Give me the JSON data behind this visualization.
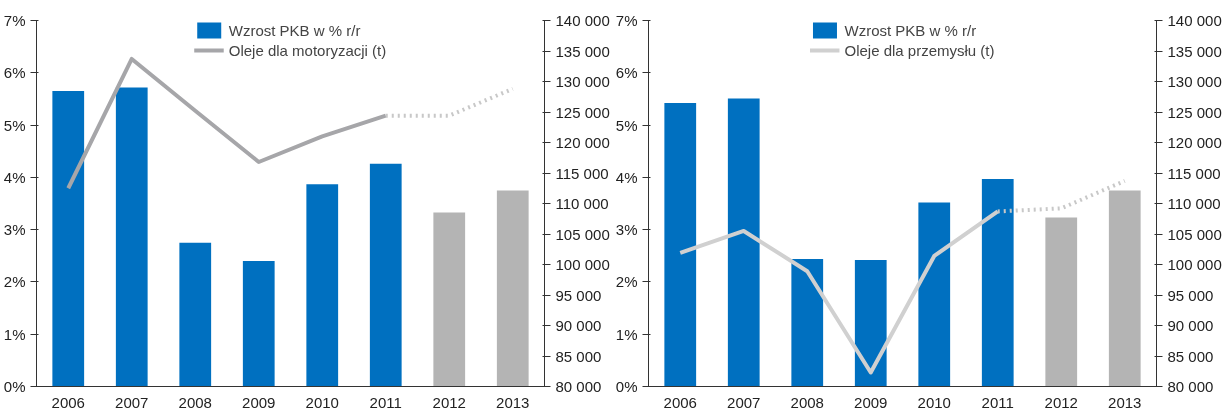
{
  "chart_data": [
    {
      "type": "bar",
      "categories": [
        "2006",
        "2007",
        "2008",
        "2009",
        "2010",
        "2011",
        "2012",
        "2013"
      ],
      "series": [
        {
          "name": "Wzrost PKB w % r/r",
          "color": "#0070c0",
          "colors": [
            "#0070c0",
            "#0070c0",
            "#0070c0",
            "#0070c0",
            "#0070c0",
            "#0070c0",
            "#b4b4b4",
            "#b4b4b4"
          ],
          "values": [
            5.65,
            5.72,
            2.75,
            2.4,
            3.87,
            4.26,
            3.33,
            3.75
          ]
        },
        {
          "name": "Oleje dla motoryzacji (t)",
          "type": "line",
          "axis": "y2",
          "color": "#a6a6a9",
          "line_style": "solid",
          "values": [
            112500,
            133700,
            125200,
            116800,
            121000,
            124400,
            null,
            null
          ]
        },
        {
          "type": "line",
          "axis": "y2",
          "color": "#c8c8c8",
          "line_style": "dotted",
          "values": [
            null,
            null,
            null,
            null,
            null,
            124400,
            124400,
            128800
          ]
        }
      ],
      "ylim": [
        0,
        7
      ],
      "yticks": [
        {
          "value": 0,
          "label": "0%"
        },
        {
          "value": 1,
          "label": "1%"
        },
        {
          "value": 2,
          "label": "2%"
        },
        {
          "value": 3,
          "label": "3%"
        },
        {
          "value": 4,
          "label": "4%"
        },
        {
          "value": 5,
          "label": "5%"
        },
        {
          "value": 6,
          "label": "6%"
        },
        {
          "value": 7,
          "label": "7%"
        }
      ],
      "y2lim": [
        80000,
        140000
      ],
      "y2ticks": [
        {
          "value": 80000,
          "label": "80 000"
        },
        {
          "value": 85000,
          "label": "85 000"
        },
        {
          "value": 90000,
          "label": "90 000"
        },
        {
          "value": 95000,
          "label": "95 000"
        },
        {
          "value": 100000,
          "label": "100 000"
        },
        {
          "value": 105000,
          "label": "105 000"
        },
        {
          "value": 110000,
          "label": "110 000"
        },
        {
          "value": 115000,
          "label": "115 000"
        },
        {
          "value": 120000,
          "label": "120 000"
        },
        {
          "value": 125000,
          "label": "125 000"
        },
        {
          "value": 130000,
          "label": "130 000"
        },
        {
          "value": 135000,
          "label": "135 000"
        },
        {
          "value": 140000,
          "label": "140 000"
        }
      ],
      "grid": false,
      "legend": "top"
    },
    {
      "type": "bar",
      "categories": [
        "2006",
        "2007",
        "2008",
        "2009",
        "2010",
        "2011",
        "2012",
        "2013"
      ],
      "series": [
        {
          "name": "Wzrost PKB w % r/r",
          "color": "#0070c0",
          "colors": [
            "#0070c0",
            "#0070c0",
            "#0070c0",
            "#0070c0",
            "#0070c0",
            "#0070c0",
            "#b4b4b4",
            "#b4b4b4"
          ],
          "values": [
            5.42,
            5.51,
            2.44,
            2.42,
            3.52,
            3.97,
            3.23,
            3.75
          ]
        },
        {
          "name": "Oleje dla przemysłu (t)",
          "type": "line",
          "axis": "y2",
          "color": "#d0d0d0",
          "line_style": "solid",
          "values": [
            101900,
            105500,
            98900,
            82300,
            101400,
            108700,
            null,
            null
          ]
        },
        {
          "type": "line",
          "axis": "y2",
          "color": "#c8c8c8",
          "line_style": "dotted",
          "values": [
            null,
            null,
            null,
            null,
            null,
            108700,
            109200,
            113700
          ]
        }
      ],
      "ylim": [
        0,
        7
      ],
      "yticks": [
        {
          "value": 0,
          "label": "0%"
        },
        {
          "value": 1,
          "label": "1%"
        },
        {
          "value": 2,
          "label": "2%"
        },
        {
          "value": 3,
          "label": "3%"
        },
        {
          "value": 4,
          "label": "4%"
        },
        {
          "value": 5,
          "label": "5%"
        },
        {
          "value": 6,
          "label": "6%"
        },
        {
          "value": 7,
          "label": "7%"
        }
      ],
      "y2lim": [
        80000,
        140000
      ],
      "y2ticks": [
        {
          "value": 80000,
          "label": "80 000"
        },
        {
          "value": 85000,
          "label": "85 000"
        },
        {
          "value": 90000,
          "label": "90 000"
        },
        {
          "value": 95000,
          "label": "95 000"
        },
        {
          "value": 100000,
          "label": "100 000"
        },
        {
          "value": 105000,
          "label": "105 000"
        },
        {
          "value": 110000,
          "label": "110 000"
        },
        {
          "value": 115000,
          "label": "115 000"
        },
        {
          "value": 120000,
          "label": "120 000"
        },
        {
          "value": 125000,
          "label": "125 000"
        },
        {
          "value": 130000,
          "label": "130 000"
        },
        {
          "value": 135000,
          "label": "135 000"
        },
        {
          "value": 140000,
          "label": "140 000"
        }
      ],
      "grid": false,
      "legend": "top"
    }
  ]
}
